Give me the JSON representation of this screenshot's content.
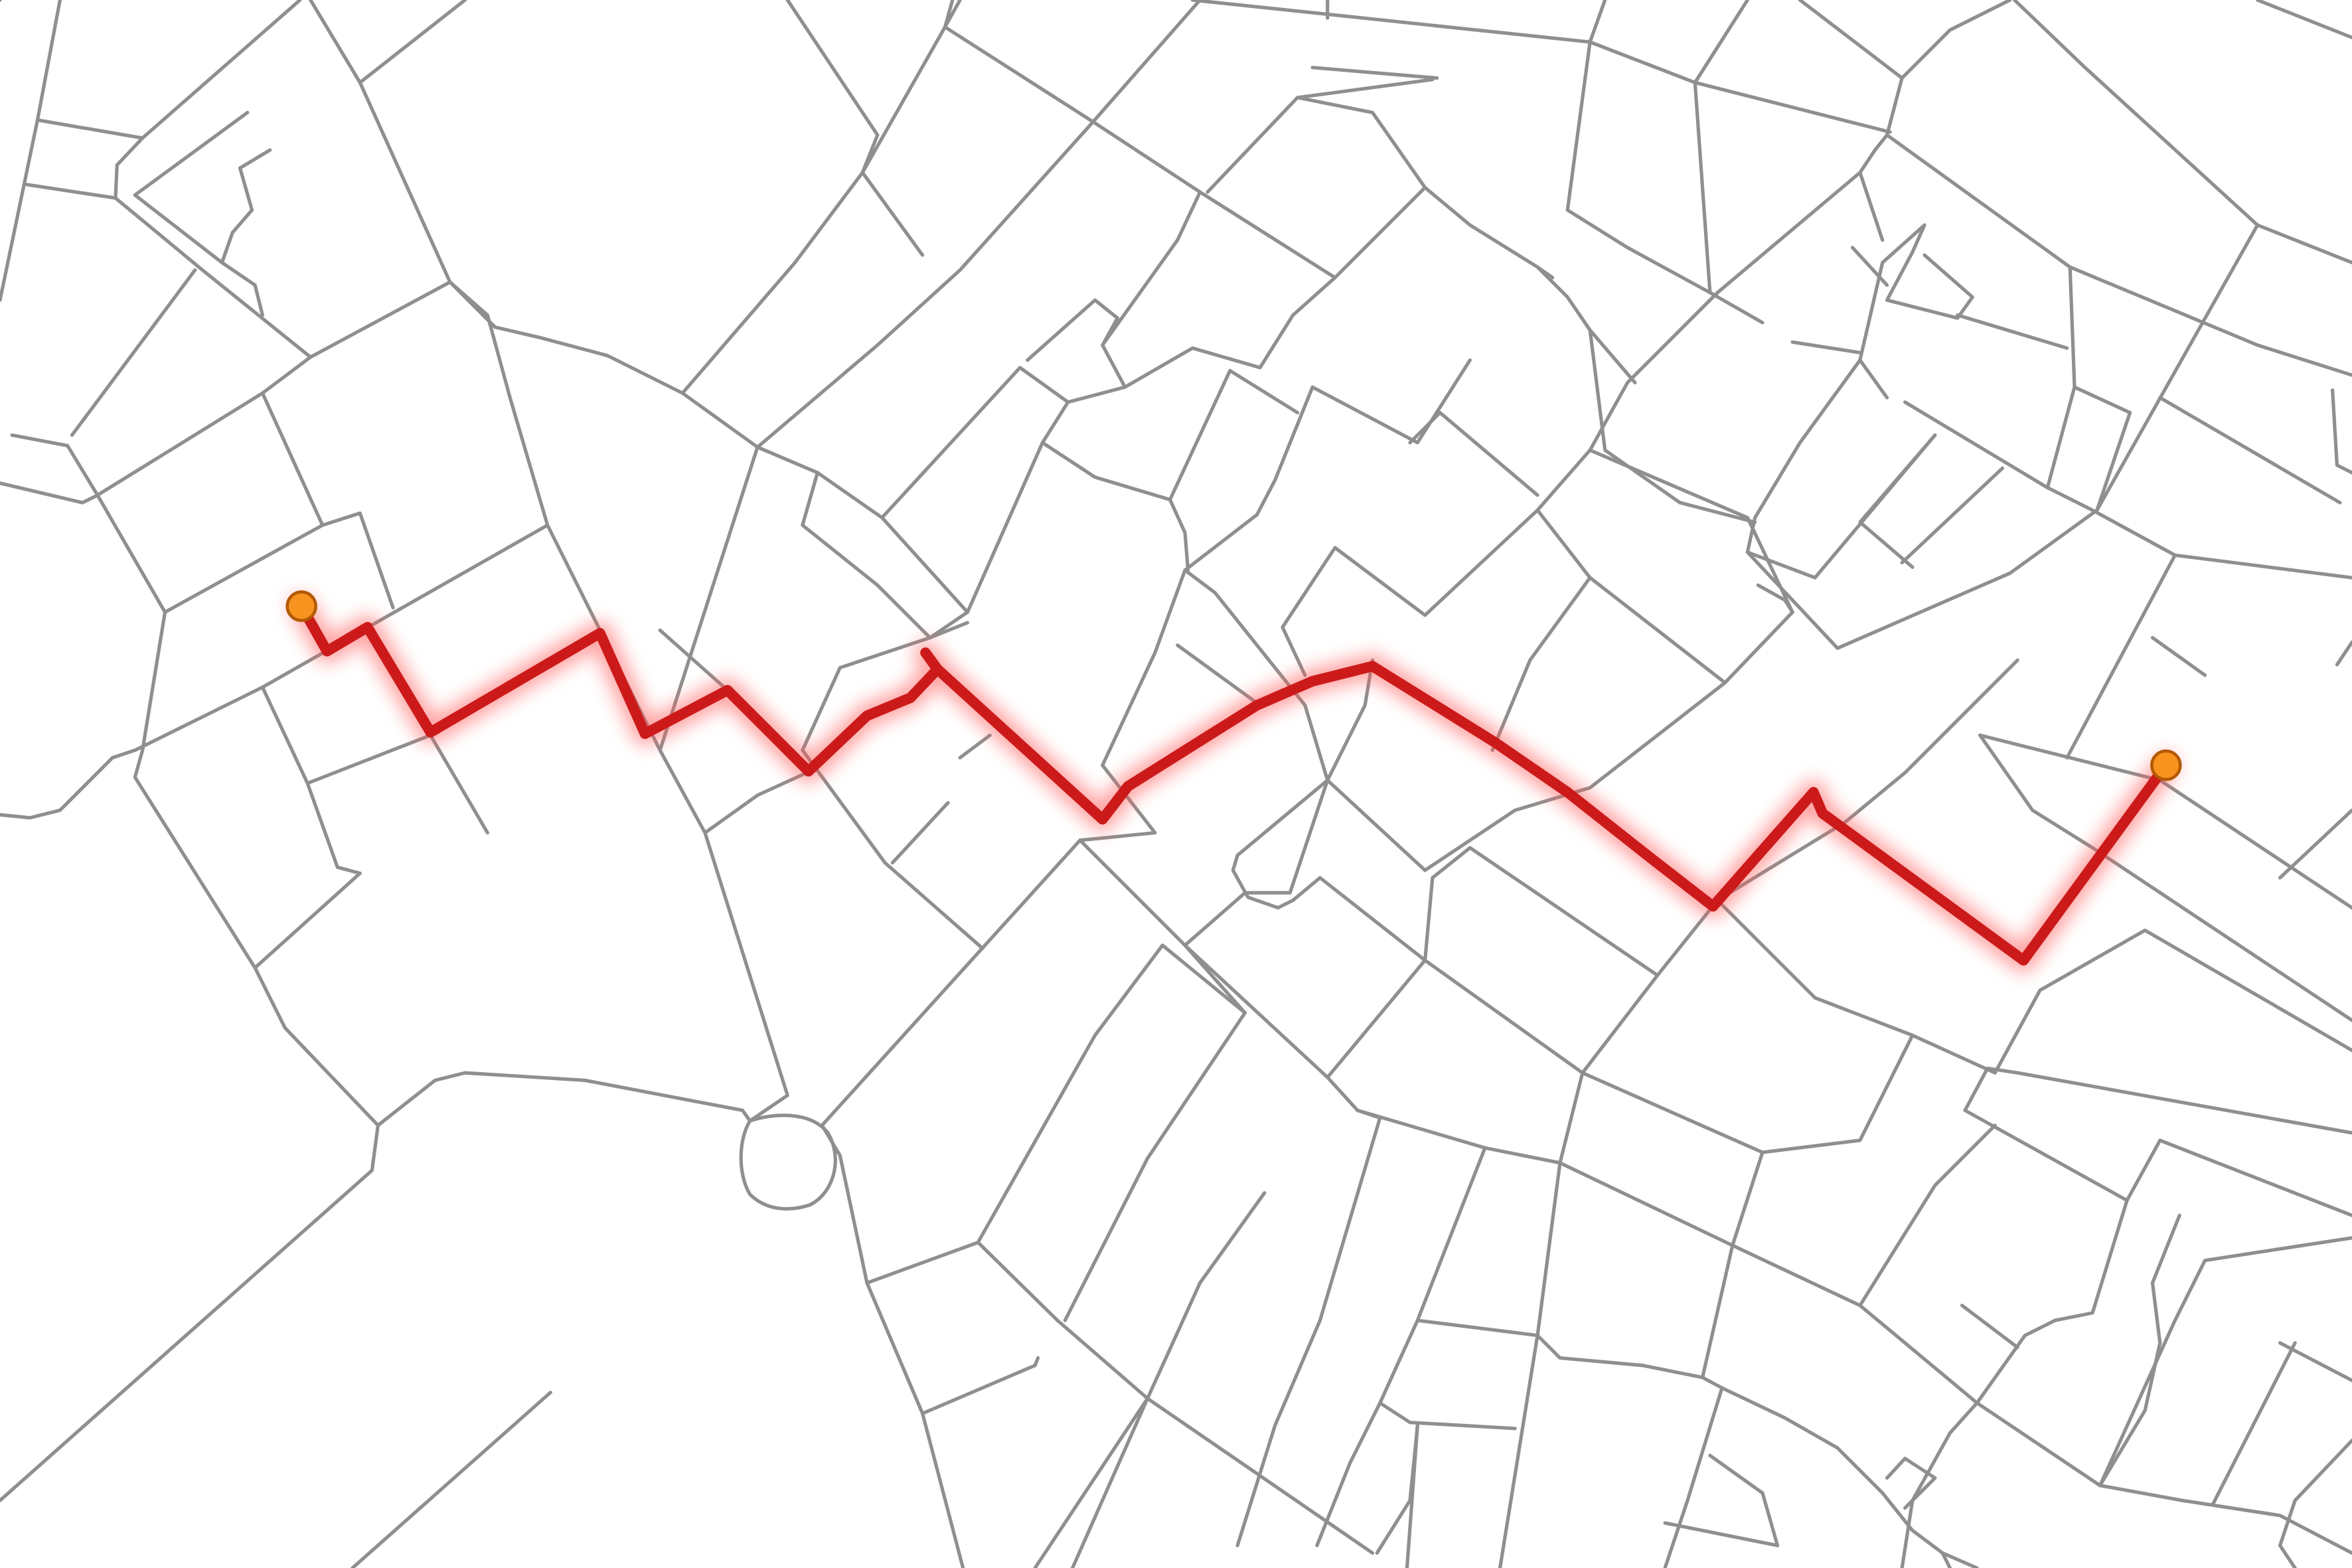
{
  "map": {
    "background": "#ffffff",
    "street_color": "#8f8f8f",
    "route": {
      "color": "#cc1a1a",
      "glow_color": "#ff5555",
      "description_visible": false
    },
    "markers": [
      {
        "role": "start",
        "fill": "#f7931e",
        "stroke": "#b35a00"
      },
      {
        "role": "end",
        "fill": "#f7931e",
        "stroke": "#b35a00"
      }
    ]
  }
}
